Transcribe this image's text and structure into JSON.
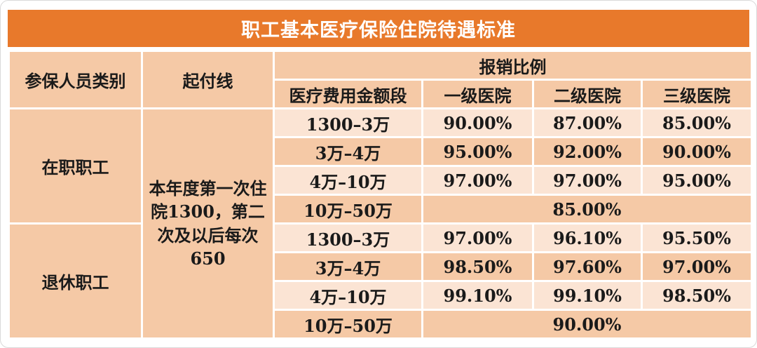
{
  "title": "职工基本医疗保险住院待遇标准",
  "colors": {
    "title_bg": "#E8792B",
    "header_bg": "#F5C9A6",
    "row_light": "#FBE4D4",
    "row_dark": "#F5C9A6",
    "grid": "#FFFFFF",
    "text": "#1A1A1A",
    "title_text": "#FFFFFF",
    "card_border": "#D9D9D9"
  },
  "table": {
    "headers": {
      "col_category": "参保人员类别",
      "col_deductible": "起付线",
      "group_ratio": "报销比例",
      "col_amount": "医疗费用金额段",
      "col_tier1": "一级医院",
      "col_tier2": "二级医院",
      "col_tier3": "三级医院"
    },
    "deductible_note": "本年度第一次住院1300，第二次及以后每次650",
    "groups": [
      {
        "category": "在职职工",
        "rows": [
          {
            "amount": "1300–3万",
            "tier1": "90.00%",
            "tier2": "87.00%",
            "tier3": "85.00%"
          },
          {
            "amount": "3万–4万",
            "tier1": "95.00%",
            "tier2": "92.00%",
            "tier3": "90.00%"
          },
          {
            "amount": "4万–10万",
            "tier1": "97.00%",
            "tier2": "97.00%",
            "tier3": "95.00%"
          },
          {
            "amount": "10万–50万",
            "merged": "85.00%"
          }
        ]
      },
      {
        "category": "退休职工",
        "rows": [
          {
            "amount": "1300–3万",
            "tier1": "97.00%",
            "tier2": "96.10%",
            "tier3": "95.50%"
          },
          {
            "amount": "3万–4万",
            "tier1": "98.50%",
            "tier2": "97.60%",
            "tier3": "97.00%"
          },
          {
            "amount": "4万–10万",
            "tier1": "99.10%",
            "tier2": "99.10%",
            "tier3": "98.50%"
          },
          {
            "amount": "10万–50万",
            "merged": "90.00%"
          }
        ]
      }
    ]
  }
}
